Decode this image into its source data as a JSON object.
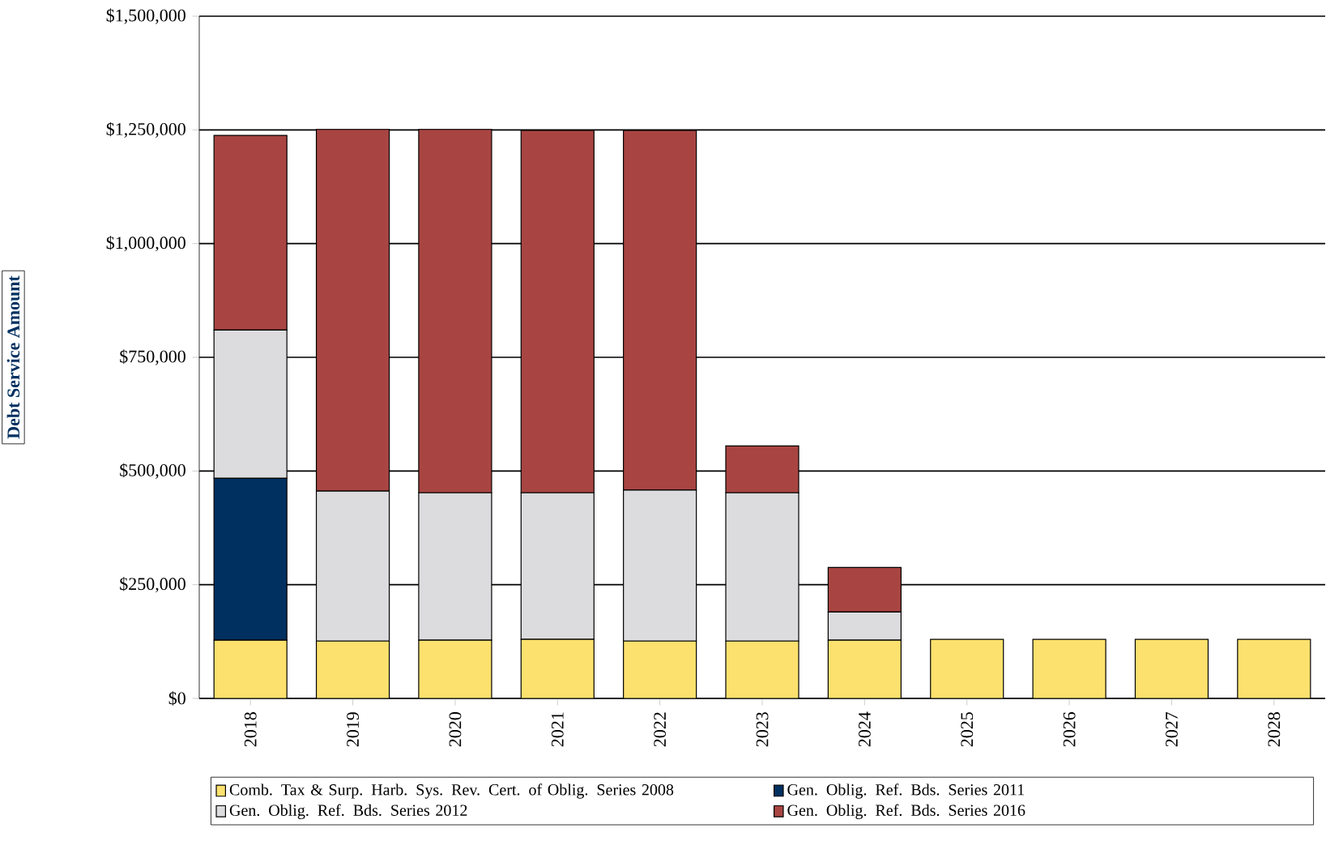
{
  "chart_data": {
    "type": "bar",
    "stacked": true,
    "ylabel": "Debt Service Amount",
    "categories": [
      "2018",
      "2019",
      "2020",
      "2021",
      "2022",
      "2023",
      "2024",
      "2025",
      "2026",
      "2027",
      "2028"
    ],
    "series": [
      {
        "name": "Comb. Tax & Surp. Harb. Sys. Rev. Cert. of Oblig. Series 2008",
        "color": "#fde16e",
        "values": [
          128000,
          126000,
          128000,
          130000,
          126000,
          126000,
          128000,
          130000,
          130000,
          130000,
          130000
        ]
      },
      {
        "name": "Gen. Oblig. Ref. Bds. Series 2011",
        "color": "#003060",
        "values": [
          356000,
          null,
          null,
          null,
          null,
          null,
          null,
          null,
          null,
          null,
          null
        ]
      },
      {
        "name": "Gen. Oblig. Ref. Bds. Series 2012",
        "color": "#dcdcde",
        "values": [
          326000,
          330000,
          324000,
          322000,
          332000,
          326000,
          62000,
          null,
          null,
          null,
          null
        ]
      },
      {
        "name": "Gen. Oblig. Ref. Bds. Series 2016",
        "color": "#a84542",
        "values": [
          428000,
          795000,
          799000,
          797000,
          791000,
          103000,
          98000,
          null,
          null,
          null,
          null
        ]
      }
    ],
    "ylim": [
      0,
      1500000
    ],
    "yticks": [
      {
        "value": 0,
        "label": "$0"
      },
      {
        "value": 250000,
        "label": "$250,000"
      },
      {
        "value": 500000,
        "label": "$500,000"
      },
      {
        "value": 750000,
        "label": "$750,000"
      },
      {
        "value": 1000000,
        "label": "$1,000,000"
      },
      {
        "value": 1250000,
        "label": "$1,250,000"
      },
      {
        "value": 1500000,
        "label": "$1,500,000"
      }
    ],
    "grid": "y",
    "legend": "bottom"
  }
}
